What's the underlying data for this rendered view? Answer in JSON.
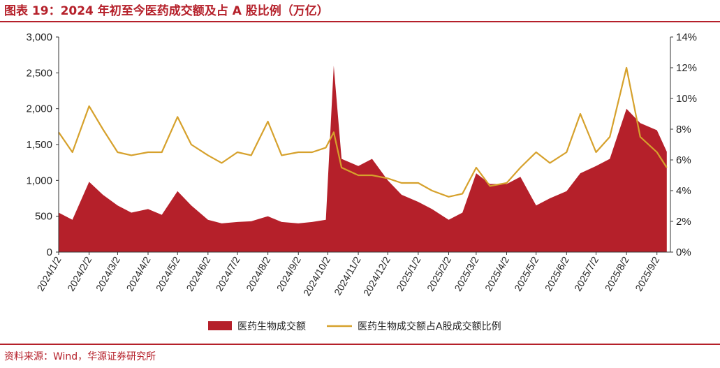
{
  "header": {
    "title": "图表 19：2024 年初至今医药成交额及占 A 股比例（万亿）"
  },
  "footer": {
    "source": "资料来源：Wind，华源证券研究所"
  },
  "colors": {
    "accent": "#b5202a",
    "area": "#b5202a",
    "line": "#d6a12c"
  },
  "chart_data": {
    "type": "area",
    "title": "图表 19：2024 年初至今医药成交额及占 A 股比例（万亿）",
    "xlabel": "",
    "ylabel": "",
    "x_tick_labels": [
      "2024/1/2",
      "2024/2/2",
      "2024/3/2",
      "2024/4/2",
      "2024/5/2",
      "2024/6/2",
      "2024/7/2",
      "2024/8/2",
      "2024/9/2",
      "2024/10/2",
      "2024/11/2",
      "2024/12/2",
      "2025/1/2",
      "2025/2/2",
      "2025/3/2",
      "2025/4/2",
      "2025/5/2",
      "2025/6/2",
      "2025/7/2",
      "2025/8/2",
      "2025/9/2"
    ],
    "y_left": {
      "ylim": [
        0,
        3000
      ],
      "ticks": [
        "0",
        "500",
        "1,000",
        "1,500",
        "2,000",
        "2,500",
        "3,000"
      ]
    },
    "y_right": {
      "ylim": [
        0,
        14
      ],
      "ticks": [
        "0%",
        "2%",
        "4%",
        "6%",
        "8%",
        "10%",
        "12%",
        "14%"
      ]
    },
    "x": [
      "2024/1/2",
      "2024/1/16",
      "2024/2/2",
      "2024/2/16",
      "2024/3/2",
      "2024/3/16",
      "2024/4/2",
      "2024/4/16",
      "2024/5/2",
      "2024/5/16",
      "2024/6/2",
      "2024/6/16",
      "2024/7/2",
      "2024/7/16",
      "2024/8/2",
      "2024/8/16",
      "2024/9/2",
      "2024/9/16",
      "2024/9/30",
      "2024/10/8",
      "2024/10/16",
      "2024/11/2",
      "2024/11/16",
      "2024/12/2",
      "2024/12/16",
      "2025/1/2",
      "2025/1/16",
      "2025/2/2",
      "2025/2/16",
      "2025/3/2",
      "2025/3/16",
      "2025/4/2",
      "2025/4/16",
      "2025/5/2",
      "2025/5/16",
      "2025/6/2",
      "2025/6/16",
      "2025/7/2",
      "2025/7/16",
      "2025/8/2",
      "2025/8/16",
      "2025/9/2",
      "2025/9/12"
    ],
    "series": [
      {
        "name": "医药生物成交额",
        "type": "area",
        "axis": "left",
        "values": [
          550,
          450,
          980,
          800,
          650,
          550,
          600,
          520,
          850,
          650,
          450,
          400,
          420,
          430,
          500,
          420,
          400,
          420,
          450,
          2600,
          1300,
          1200,
          1300,
          1000,
          800,
          700,
          600,
          450,
          550,
          1100,
          950,
          950,
          1050,
          650,
          750,
          850,
          1100,
          1200,
          1300,
          2000,
          1800,
          1700,
          1400
        ]
      },
      {
        "name": "医药生物成交额占A股成交额比例",
        "type": "line",
        "axis": "right",
        "values": [
          7.8,
          6.5,
          9.5,
          8.0,
          6.5,
          6.3,
          6.5,
          6.5,
          8.8,
          7.0,
          6.3,
          5.8,
          6.5,
          6.3,
          8.5,
          6.3,
          6.5,
          6.5,
          6.8,
          7.8,
          5.5,
          5.0,
          5.0,
          4.8,
          4.5,
          4.5,
          4.0,
          3.6,
          3.8,
          5.5,
          4.3,
          4.5,
          5.5,
          6.5,
          5.8,
          6.5,
          9.0,
          6.5,
          7.5,
          12.0,
          7.5,
          6.5,
          5.5
        ]
      }
    ],
    "legend": {
      "position": "bottom-center"
    },
    "grid": false
  }
}
